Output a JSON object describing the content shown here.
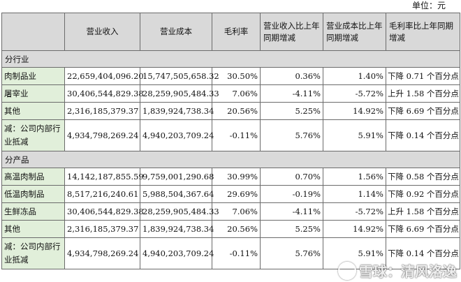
{
  "unit_label": "单位：元",
  "columns": [
    "营业收入",
    "营业成本",
    "毛利率",
    "营业收入比上年同期增减",
    "营业成本比上年同期增减",
    "毛利率比上年同期增减"
  ],
  "sections": [
    {
      "title": "分行业",
      "rows": [
        {
          "label": "肉制品业",
          "revenue": "22,659,404,096.20",
          "cost": "15,747,505,658.32",
          "margin": "30.50%",
          "rev_change": "0.36%",
          "cost_change": "1.40%",
          "margin_change": "下降 0.71 个百分点"
        },
        {
          "label": "屠宰业",
          "revenue": "30,406,544,829.38",
          "cost": "28,259,905,484.33",
          "margin": "7.06%",
          "rev_change": "-4.11%",
          "cost_change": "-5.72%",
          "margin_change": "上升 1.58 个百分点"
        },
        {
          "label": "其他",
          "revenue": "2,316,185,379.37",
          "cost": "1,839,924,738.34",
          "margin": "20.56%",
          "rev_change": "5.25%",
          "cost_change": "14.92%",
          "margin_change": "下降 6.69 个百分点"
        },
        {
          "label": "减：公司内部行业抵减",
          "revenue": "4,934,798,269.24",
          "cost": "4,940,203,709.24",
          "margin": "-0.11%",
          "rev_change": "5.76%",
          "cost_change": "5.91%",
          "margin_change": "下降 0.14 个百分点"
        }
      ]
    },
    {
      "title": "分产品",
      "rows": [
        {
          "label": "高温肉制品",
          "revenue": "14,142,187,855.59",
          "cost": "9,759,001,290.68",
          "margin": "30.99%",
          "rev_change": "0.70%",
          "cost_change": "1.56%",
          "margin_change": "下降 0.58 个百分点"
        },
        {
          "label": "低温肉制品",
          "revenue": "8,517,216,240.61",
          "cost": "5,988,504,367.64",
          "margin": "29.69%",
          "rev_change": "-0.19%",
          "cost_change": "1.14%",
          "margin_change": "下降 0.92 个百分点"
        },
        {
          "label": "生鲜冻品",
          "revenue": "30,406,544,829.38",
          "cost": "28,259,905,484.33",
          "margin": "7.06%",
          "rev_change": "-4.11%",
          "cost_change": "-5.72%",
          "margin_change": "上升 1.58 个百分点"
        },
        {
          "label": "其他",
          "revenue": "2,316,185,379.37",
          "cost": "1,839,924,738.34",
          "margin": "20.56%",
          "rev_change": "5.25%",
          "cost_change": "14.92%",
          "margin_change": "下降 6.69 个百分点"
        },
        {
          "label": "减：公司内部行业抵减",
          "revenue": "4,934,798,269.24",
          "cost": "4,940,203,709.24",
          "margin": "-0.11%",
          "rev_change": "5.76%",
          "cost_change": "5.91%",
          "margin_change": "下降 0.14 个百分点"
        }
      ]
    }
  ],
  "watermark": {
    "logo_icon": "snowball-logo-icon",
    "text": "雪球：清风洛逸"
  }
}
